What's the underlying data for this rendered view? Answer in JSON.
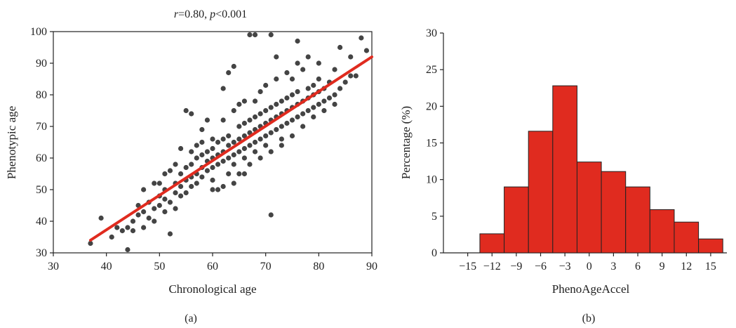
{
  "chart_data": [
    {
      "type": "scatter",
      "panel_label": "(a)",
      "title_r": "r",
      "title_r_value": "=0.80, ",
      "title_p": "p",
      "title_p_value": "<0.001",
      "xlabel": "Chronological age",
      "ylabel": "Phenotypic age",
      "xlim": [
        30,
        90
      ],
      "ylim": [
        30,
        100
      ],
      "xticks": [
        "30",
        "40",
        "50",
        "60",
        "70",
        "80",
        "90"
      ],
      "yticks": [
        "30",
        "40",
        "50",
        "60",
        "70",
        "80",
        "90",
        "100"
      ],
      "grid": false,
      "point_color": "#444444",
      "fit_color": "#e02b1f",
      "fit_line": {
        "x": [
          37,
          90
        ],
        "y": [
          34,
          92
        ]
      },
      "points": [
        [
          37,
          33
        ],
        [
          39,
          41
        ],
        [
          41,
          35
        ],
        [
          42,
          38
        ],
        [
          43,
          37
        ],
        [
          44,
          31
        ],
        [
          44,
          38
        ],
        [
          45,
          37
        ],
        [
          45,
          40
        ],
        [
          46,
          45
        ],
        [
          46,
          42
        ],
        [
          47,
          38
        ],
        [
          47,
          43
        ],
        [
          48,
          41
        ],
        [
          48,
          46
        ],
        [
          49,
          44
        ],
        [
          49,
          40
        ],
        [
          50,
          48
        ],
        [
          50,
          45
        ],
        [
          50,
          52
        ],
        [
          51,
          43
        ],
        [
          51,
          47
        ],
        [
          51,
          50
        ],
        [
          52,
          36
        ],
        [
          52,
          56
        ],
        [
          52,
          46
        ],
        [
          53,
          49
        ],
        [
          53,
          52
        ],
        [
          53,
          44
        ],
        [
          54,
          51
        ],
        [
          54,
          55
        ],
        [
          54,
          48
        ],
        [
          55,
          57
        ],
        [
          55,
          53
        ],
        [
          55,
          75
        ],
        [
          55,
          49
        ],
        [
          56,
          51
        ],
        [
          56,
          58
        ],
        [
          56,
          74
        ],
        [
          56,
          54
        ],
        [
          57,
          52
        ],
        [
          57,
          55
        ],
        [
          57,
          60
        ],
        [
          58,
          54
        ],
        [
          58,
          57
        ],
        [
          58,
          61
        ],
        [
          59,
          56
        ],
        [
          59,
          59
        ],
        [
          59,
          62
        ],
        [
          59,
          72
        ],
        [
          60,
          57
        ],
        [
          60,
          60
        ],
        [
          60,
          63
        ],
        [
          60,
          53
        ],
        [
          61,
          58
        ],
        [
          61,
          61
        ],
        [
          61,
          65
        ],
        [
          62,
          59
        ],
        [
          62,
          62
        ],
        [
          62,
          82
        ],
        [
          62,
          66
        ],
        [
          63,
          60
        ],
        [
          63,
          64
        ],
        [
          63,
          67
        ],
        [
          63,
          87
        ],
        [
          64,
          61
        ],
        [
          64,
          65
        ],
        [
          64,
          58
        ],
        [
          64,
          89
        ],
        [
          65,
          62
        ],
        [
          65,
          66
        ],
        [
          65,
          70
        ],
        [
          65,
          77
        ],
        [
          66,
          63
        ],
        [
          66,
          67
        ],
        [
          66,
          71
        ],
        [
          66,
          60
        ],
        [
          67,
          64
        ],
        [
          67,
          68
        ],
        [
          67,
          72
        ],
        [
          67,
          99
        ],
        [
          68,
          65
        ],
        [
          68,
          69
        ],
        [
          68,
          73
        ],
        [
          68,
          99
        ],
        [
          68,
          62
        ],
        [
          69,
          66
        ],
        [
          69,
          70
        ],
        [
          69,
          74
        ],
        [
          69,
          81
        ],
        [
          70,
          67
        ],
        [
          70,
          71
        ],
        [
          70,
          75
        ],
        [
          70,
          64
        ],
        [
          71,
          68
        ],
        [
          71,
          72
        ],
        [
          71,
          42
        ],
        [
          71,
          99
        ],
        [
          71,
          76
        ],
        [
          72,
          69
        ],
        [
          72,
          73
        ],
        [
          72,
          77
        ],
        [
          72,
          92
        ],
        [
          73,
          70
        ],
        [
          73,
          74
        ],
        [
          73,
          66
        ],
        [
          73,
          78
        ],
        [
          74,
          71
        ],
        [
          74,
          75
        ],
        [
          74,
          79
        ],
        [
          75,
          72
        ],
        [
          75,
          76
        ],
        [
          75,
          80
        ],
        [
          75,
          85
        ],
        [
          76,
          73
        ],
        [
          76,
          77
        ],
        [
          76,
          81
        ],
        [
          76,
          97
        ],
        [
          77,
          74
        ],
        [
          77,
          78
        ],
        [
          77,
          88
        ],
        [
          78,
          75
        ],
        [
          78,
          79
        ],
        [
          78,
          82
        ],
        [
          79,
          76
        ],
        [
          79,
          80
        ],
        [
          79,
          83
        ],
        [
          80,
          77
        ],
        [
          80,
          81
        ],
        [
          80,
          85
        ],
        [
          81,
          78
        ],
        [
          81,
          82
        ],
        [
          82,
          79
        ],
        [
          82,
          84
        ],
        [
          83,
          80
        ],
        [
          83,
          88
        ],
        [
          84,
          82
        ],
        [
          84,
          95
        ],
        [
          85,
          84
        ],
        [
          86,
          86
        ],
        [
          87,
          86
        ],
        [
          88,
          98
        ],
        [
          89,
          94
        ],
        [
          64,
          75
        ],
        [
          66,
          78
        ],
        [
          60,
          66
        ],
        [
          58,
          69
        ],
        [
          62,
          72
        ],
        [
          57,
          64
        ],
        [
          54,
          63
        ],
        [
          68,
          78
        ],
        [
          70,
          83
        ],
        [
          72,
          85
        ],
        [
          74,
          87
        ],
        [
          65,
          55
        ],
        [
          67,
          58
        ],
        [
          63,
          55
        ],
        [
          61,
          50
        ],
        [
          69,
          60
        ],
        [
          71,
          62
        ],
        [
          73,
          64
        ],
        [
          75,
          67
        ],
        [
          77,
          70
        ],
        [
          79,
          73
        ],
        [
          81,
          75
        ],
        [
          83,
          77
        ],
        [
          53,
          58
        ],
        [
          51,
          55
        ],
        [
          49,
          52
        ],
        [
          47,
          50
        ],
        [
          56,
          62
        ],
        [
          58,
          65
        ],
        [
          76,
          90
        ],
        [
          78,
          92
        ],
        [
          80,
          90
        ],
        [
          86,
          92
        ],
        [
          66,
          55
        ],
        [
          64,
          52
        ],
        [
          62,
          51
        ],
        [
          60,
          50
        ]
      ]
    },
    {
      "type": "bar",
      "panel_label": "(b)",
      "xlabel": "PhenoAgeAccel",
      "ylabel": "Percentage (%)",
      "xlim": [
        -18,
        17
      ],
      "ylim": [
        0,
        30
      ],
      "xticks": [
        "−15",
        "−12",
        "−9",
        "−6",
        "−3",
        "0",
        "3",
        "6",
        "9",
        "12",
        "15"
      ],
      "xtick_values": [
        -15,
        -12,
        -9,
        -6,
        -3,
        0,
        3,
        6,
        9,
        12,
        15
      ],
      "yticks": [
        "0",
        "5",
        "10",
        "15",
        "20",
        "25",
        "30"
      ],
      "bar_color": "#e02b1f",
      "bin_edges": [
        -13.5,
        -10.5,
        -7.5,
        -4.5,
        -1.5,
        1.5,
        4.5,
        7.5,
        10.5,
        13.5,
        16.5
      ],
      "values": [
        2.6,
        9.0,
        16.6,
        22.8,
        12.4,
        11.1,
        9.0,
        5.9,
        4.2,
        1.9
      ]
    }
  ]
}
